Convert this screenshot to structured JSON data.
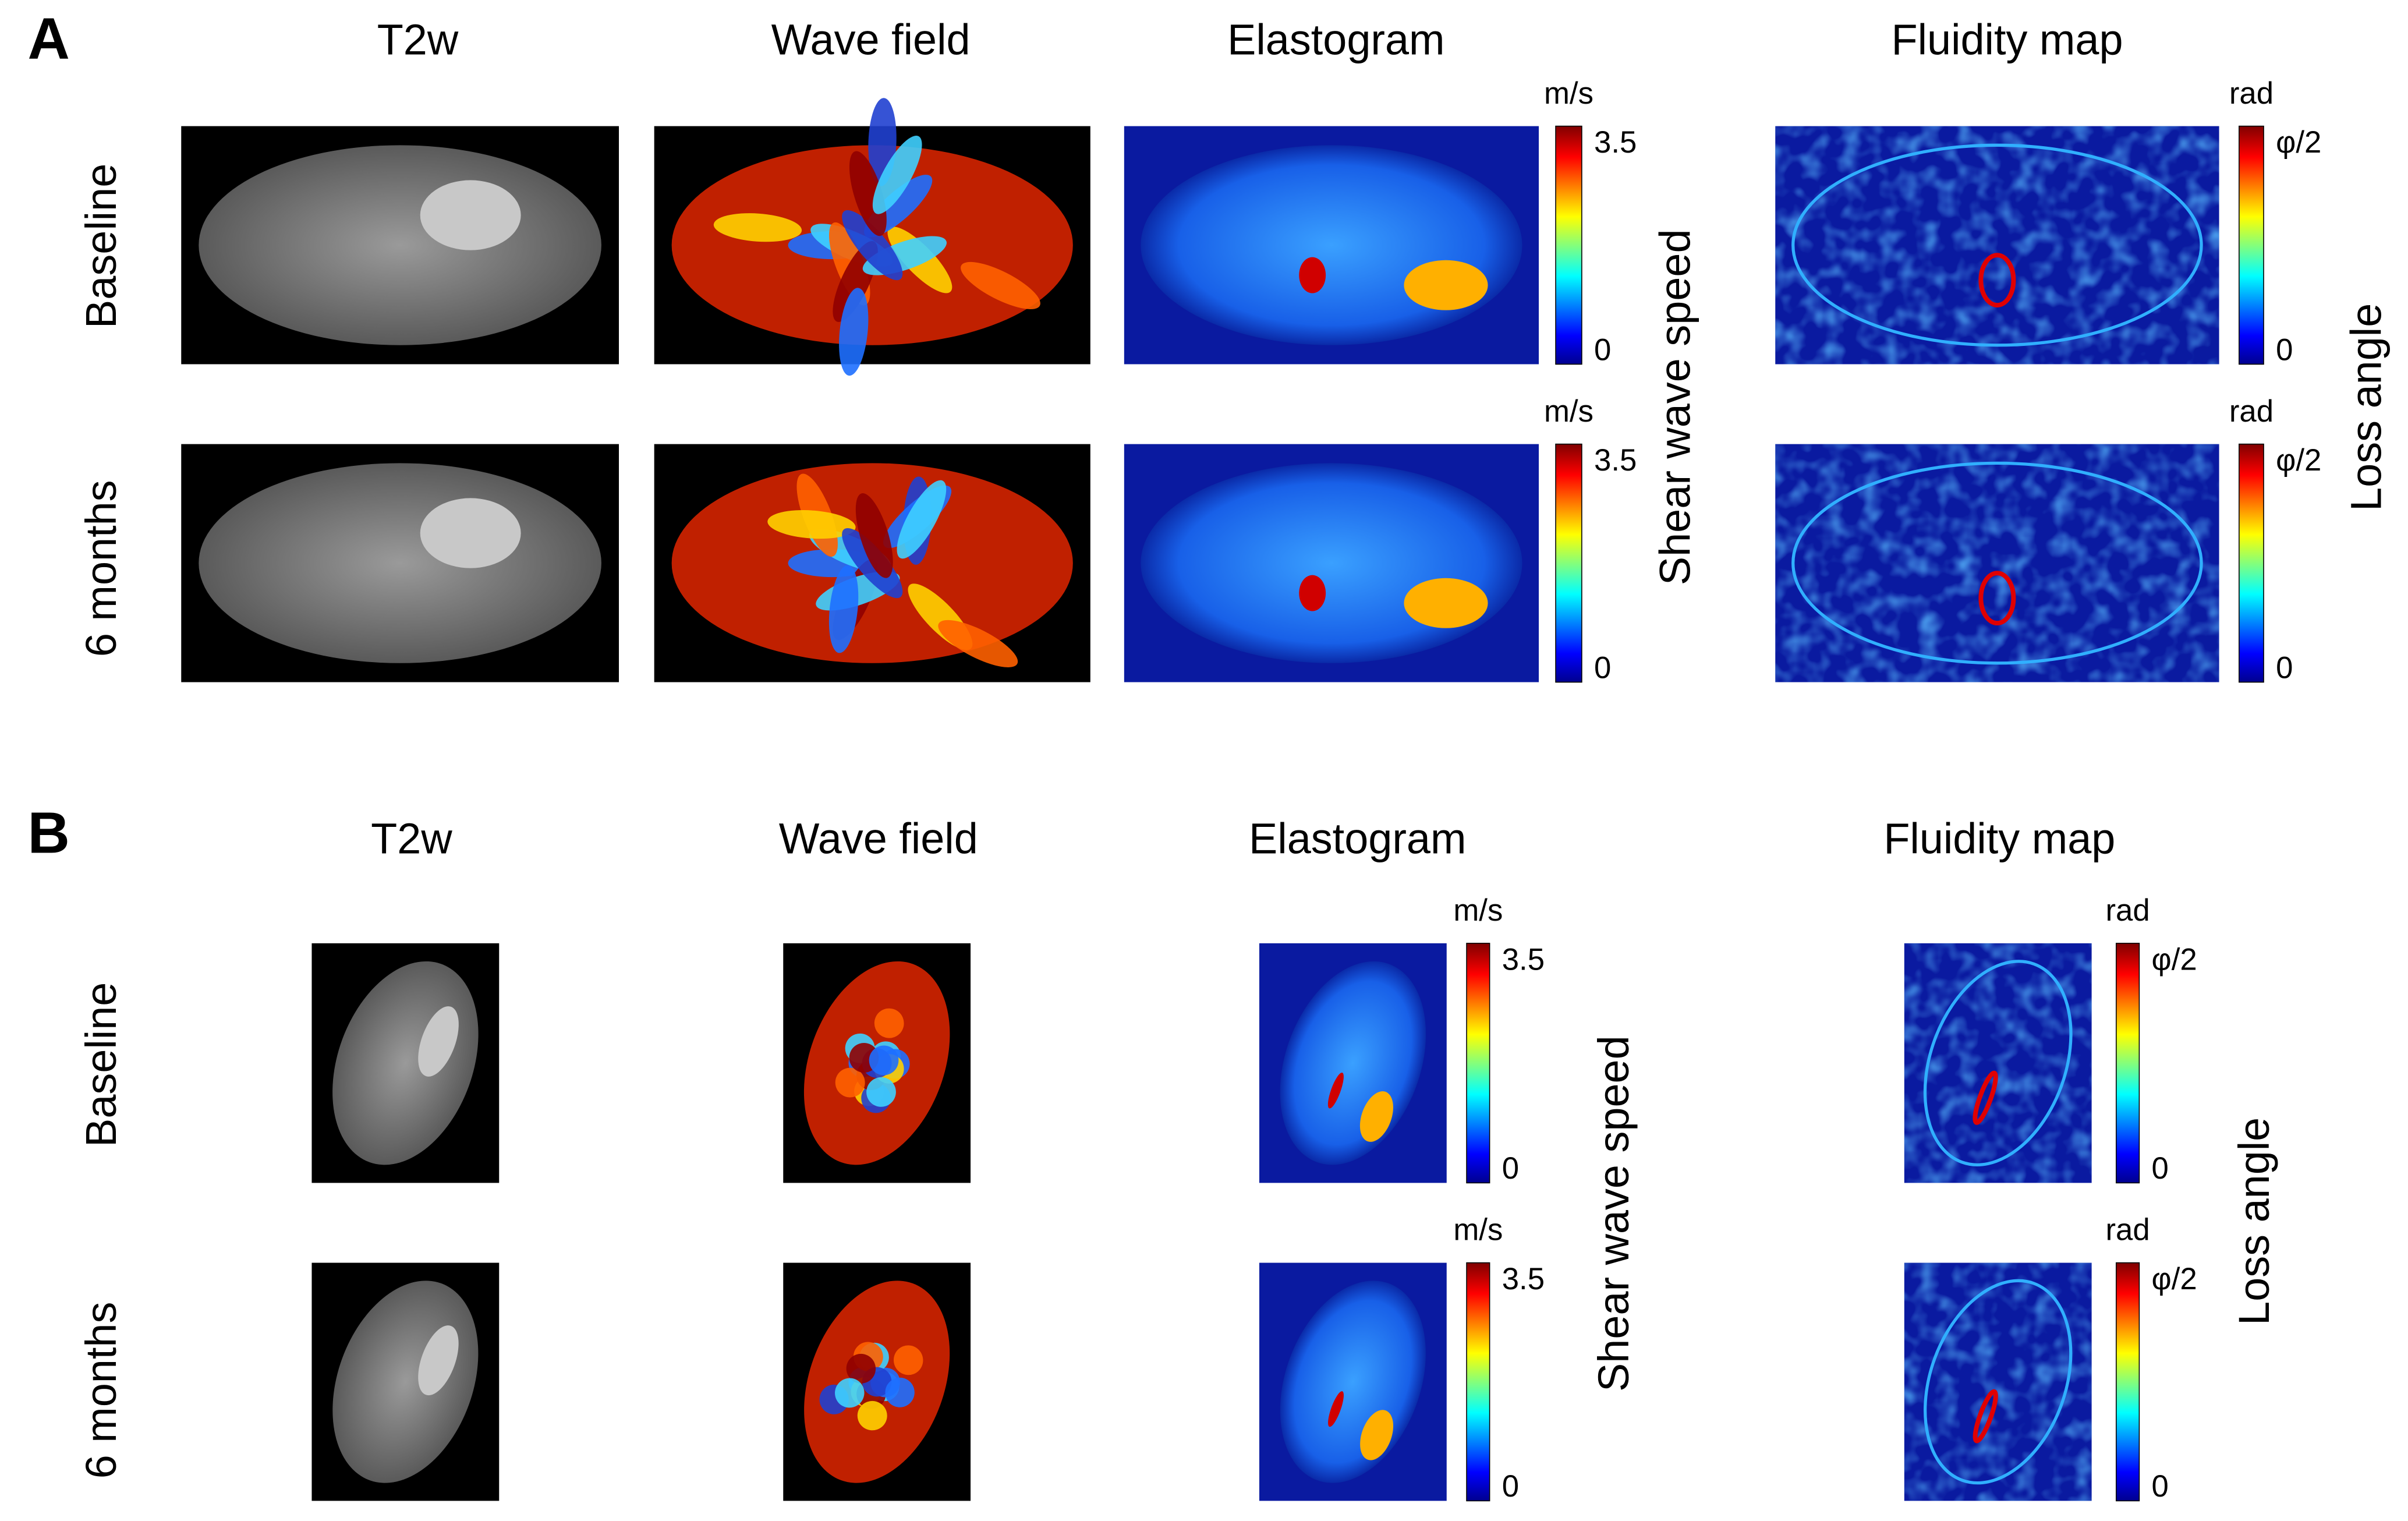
{
  "panels": [
    {
      "label": "A",
      "columns": [
        "T2w",
        "Wave field",
        "Elastogram",
        "Fluidity map"
      ],
      "rows": [
        "Baseline",
        "6 months"
      ],
      "speed_bar": {
        "unit": "m/s",
        "max": "3.5",
        "min": "0",
        "title": "Shear wave speed"
      },
      "angle_bar": {
        "unit": "rad",
        "max": "φ/2",
        "min": "0",
        "title": "Loss angle"
      }
    },
    {
      "label": "B",
      "columns": [
        "T2w",
        "Wave field",
        "Elastogram",
        "Fluidity map"
      ],
      "rows": [
        "Baseline",
        "6 months"
      ],
      "speed_bar": {
        "unit": "m/s",
        "max": "3.5",
        "min": "0",
        "title": "Shear wave speed"
      },
      "angle_bar": {
        "unit": "rad",
        "max": "φ/2",
        "min": "0",
        "title": "Loss angle"
      }
    }
  ]
}
